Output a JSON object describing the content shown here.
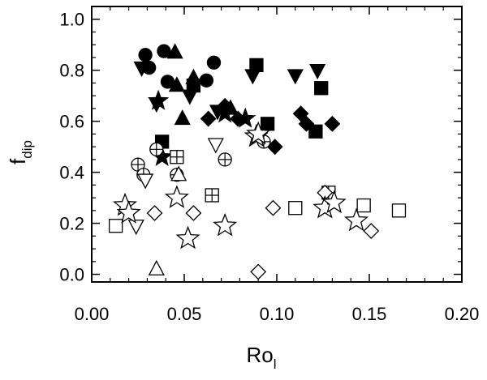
{
  "chart_data": {
    "type": "scatter",
    "title": "",
    "xlabel": "Ro",
    "xlabel_sub": "l",
    "ylabel": "f",
    "ylabel_sub": "dip",
    "xlim": [
      0.0,
      0.2
    ],
    "ylim": [
      -0.03,
      1.05
    ],
    "x_ticks": [
      "0.00",
      "0.05",
      "0.10",
      "0.15",
      "0.20"
    ],
    "x_tick_values": [
      0.0,
      0.05,
      0.1,
      0.15,
      0.2
    ],
    "y_ticks": [
      "0.0",
      "0.2",
      "0.4",
      "0.6",
      "0.8",
      "1.0"
    ],
    "y_tick_values": [
      0.0,
      0.2,
      0.4,
      0.6,
      0.8,
      1.0
    ],
    "grid": false,
    "series": [
      {
        "marker": "circle",
        "fill": "filled",
        "points": [
          [
            0.029,
            0.86
          ],
          [
            0.039,
            0.875
          ],
          [
            0.031,
            0.81
          ],
          [
            0.041,
            0.755
          ],
          [
            0.062,
            0.76
          ],
          [
            0.066,
            0.83
          ]
        ]
      },
      {
        "marker": "triangle-up",
        "fill": "filled",
        "points": [
          [
            0.045,
            0.87
          ],
          [
            0.046,
            0.74
          ],
          [
            0.055,
            0.77
          ],
          [
            0.049,
            0.61
          ],
          [
            0.075,
            0.65
          ]
        ]
      },
      {
        "marker": "triangle-down",
        "fill": "filled",
        "points": [
          [
            0.027,
            0.81
          ],
          [
            0.035,
            0.67
          ],
          [
            0.053,
            0.7
          ],
          [
            0.068,
            0.64
          ],
          [
            0.087,
            0.78
          ],
          [
            0.11,
            0.78
          ],
          [
            0.122,
            0.8
          ]
        ]
      },
      {
        "marker": "square",
        "fill": "filled",
        "points": [
          [
            0.055,
            0.74
          ],
          [
            0.089,
            0.82
          ],
          [
            0.095,
            0.59
          ],
          [
            0.124,
            0.73
          ],
          [
            0.121,
            0.56
          ],
          [
            0.038,
            0.52
          ]
        ]
      },
      {
        "marker": "diamond",
        "fill": "filled",
        "points": [
          [
            0.063,
            0.61
          ],
          [
            0.072,
            0.66
          ],
          [
            0.079,
            0.61
          ],
          [
            0.099,
            0.5
          ],
          [
            0.113,
            0.63
          ],
          [
            0.116,
            0.59
          ],
          [
            0.13,
            0.59
          ]
        ]
      },
      {
        "marker": "star",
        "fill": "filled",
        "points": [
          [
            0.036,
            0.68
          ],
          [
            0.072,
            0.63
          ],
          [
            0.083,
            0.61
          ],
          [
            0.038,
            0.46
          ]
        ]
      },
      {
        "marker": "circle-plus",
        "fill": "open",
        "points": [
          [
            0.035,
            0.49
          ],
          [
            0.025,
            0.43
          ],
          [
            0.028,
            0.39
          ],
          [
            0.046,
            0.39
          ],
          [
            0.072,
            0.45
          ],
          [
            0.093,
            0.52
          ]
        ]
      },
      {
        "marker": "square-plus",
        "fill": "open",
        "points": [
          [
            0.046,
            0.46
          ],
          [
            0.065,
            0.31
          ],
          [
            0.128,
            0.32
          ]
        ]
      },
      {
        "marker": "square",
        "fill": "open",
        "points": [
          [
            0.013,
            0.19
          ],
          [
            0.11,
            0.26
          ],
          [
            0.147,
            0.27
          ],
          [
            0.166,
            0.25
          ]
        ]
      },
      {
        "marker": "triangle-up",
        "fill": "open",
        "points": [
          [
            0.047,
            0.39
          ],
          [
            0.035,
            0.02
          ]
        ]
      },
      {
        "marker": "triangle-down",
        "fill": "open",
        "points": [
          [
            0.029,
            0.37
          ],
          [
            0.024,
            0.19
          ],
          [
            0.067,
            0.51
          ]
        ]
      },
      {
        "marker": "diamond",
        "fill": "open",
        "points": [
          [
            0.034,
            0.24
          ],
          [
            0.055,
            0.24
          ],
          [
            0.098,
            0.26
          ],
          [
            0.126,
            0.32
          ],
          [
            0.151,
            0.17
          ],
          [
            0.09,
            0.01
          ]
        ]
      },
      {
        "marker": "star",
        "fill": "open",
        "points": [
          [
            0.018,
            0.27
          ],
          [
            0.02,
            0.24
          ],
          [
            0.046,
            0.3
          ],
          [
            0.052,
            0.14
          ],
          [
            0.072,
            0.19
          ],
          [
            0.089,
            0.54
          ],
          [
            0.09,
            0.55
          ],
          [
            0.126,
            0.26
          ],
          [
            0.131,
            0.28
          ],
          [
            0.143,
            0.21
          ]
        ]
      }
    ]
  }
}
